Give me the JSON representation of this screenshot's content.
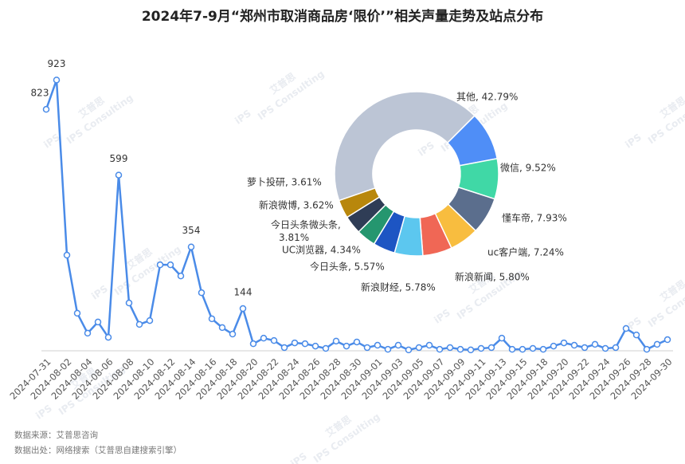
{
  "chart_data": [
    {
      "type": "line",
      "title": "2024年7-9月“郑州市取消商品房‘限价’”相关声量走势及站点分布",
      "categories": [
        "2024-07-31",
        null,
        "2024-08-02",
        null,
        "2024-08-04",
        null,
        "2024-08-06",
        null,
        "2024-08-08",
        null,
        "2024-08-10",
        null,
        "2024-08-12",
        null,
        "2024-08-14",
        null,
        "2024-08-16",
        null,
        "2024-08-18",
        null,
        "2024-08-20",
        null,
        "2024-08-22",
        null,
        "2024-08-24",
        null,
        "2024-08-26",
        null,
        "2024-08-28",
        null,
        "2024-08-30",
        null,
        "2024-09-01",
        null,
        "2024-09-03",
        null,
        "2024-09-05",
        null,
        "2024-09-07",
        null,
        "2024-09-09",
        null,
        "2024-09-11",
        null,
        "2024-09-13",
        null,
        "2024-09-15",
        null,
        "2024-09-18",
        null,
        "2024-09-20",
        null,
        "2024-09-22",
        null,
        "2024-09-24",
        null,
        "2024-09-26",
        null,
        "2024-09-28",
        null,
        "2024-09-30"
      ],
      "values": [
        823,
        923,
        326,
        128,
        60,
        98,
        46,
        599,
        163,
        90,
        103,
        293,
        293,
        255,
        354,
        198,
        109,
        79,
        57,
        144,
        24,
        43,
        35,
        11,
        27,
        24,
        16,
        8,
        33,
        16,
        30,
        11,
        19,
        5,
        19,
        3,
        11,
        19,
        5,
        11,
        5,
        3,
        8,
        11,
        43,
        5,
        5,
        8,
        5,
        16,
        27,
        19,
        11,
        22,
        8,
        11,
        76,
        54,
        5,
        22,
        38
      ],
      "labeled_indices": [
        0,
        1,
        7,
        14,
        19
      ],
      "color": "#4a8be8",
      "ylim": [
        0,
        1000
      ]
    },
    {
      "type": "donut",
      "values": [
        42.79,
        9.52,
        7.93,
        7.24,
        5.8,
        5.78,
        5.57,
        4.34,
        3.81,
        3.62,
        3.61
      ],
      "value_labels": [
        "其他, 42.79%",
        "微信, 9.52%",
        "懂车帝, 7.93%",
        "uc客户端, 7.24%",
        "新浪新闻, 5.80%",
        "新浪财经, 5.78%",
        "今日头条, 5.57%",
        "UC浏览器, 4.34%",
        "今日头条微头条, 3.81%",
        "新浪微博, 3.62%",
        "萝卜投研, 3.61%"
      ],
      "colors": [
        "#bcc5d5",
        "#4f8ef7",
        "#40d8a6",
        "#5b6e8d",
        "#f8bd3f",
        "#f06755",
        "#5cc7ef",
        "#1d55c3",
        "#25966f",
        "#2f3d56",
        "#b8870c"
      ]
    }
  ],
  "footer": [
    "数据来源：艾普思咨询",
    "数据出处：网络搜索（艾普思自建搜索引擎）"
  ],
  "watermark": {
    "logo": "iPS",
    "name": "艾普思",
    "sub": "IPS Consulting"
  }
}
